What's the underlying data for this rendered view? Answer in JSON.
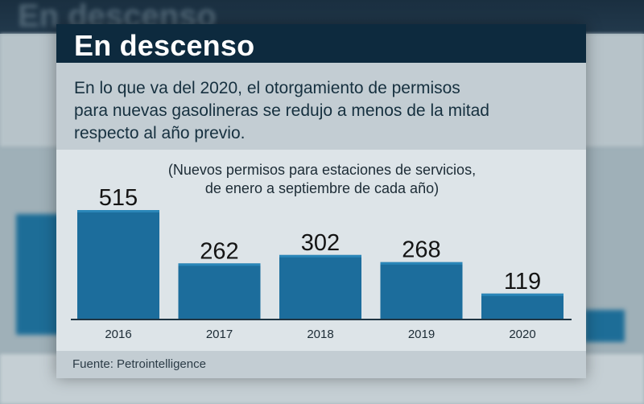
{
  "header": {
    "title": "En descenso"
  },
  "subtitle": {
    "line1": "En lo que va del 2020, el otorgamiento de permisos",
    "line2": "para nuevas gasolineras se redujo a menos de la mitad",
    "line3": "respecto al año previo."
  },
  "chart_note": {
    "line1": "(Nuevos permisos para estaciones de servicios,",
    "line2": "de enero a septiembre de cada año)"
  },
  "footer": {
    "source": "Fuente: Petrointelligence"
  },
  "colors": {
    "bar": "#1c6d9c",
    "bar_top": "#2a86b8",
    "header": "#0d2a3e"
  },
  "chart_data": {
    "type": "bar",
    "title": "En descenso",
    "categories": [
      "2016",
      "2017",
      "2018",
      "2019",
      "2020"
    ],
    "values": [
      515,
      262,
      302,
      268,
      119
    ],
    "ylim": [
      0,
      515
    ],
    "grid": false,
    "legend": "none"
  }
}
